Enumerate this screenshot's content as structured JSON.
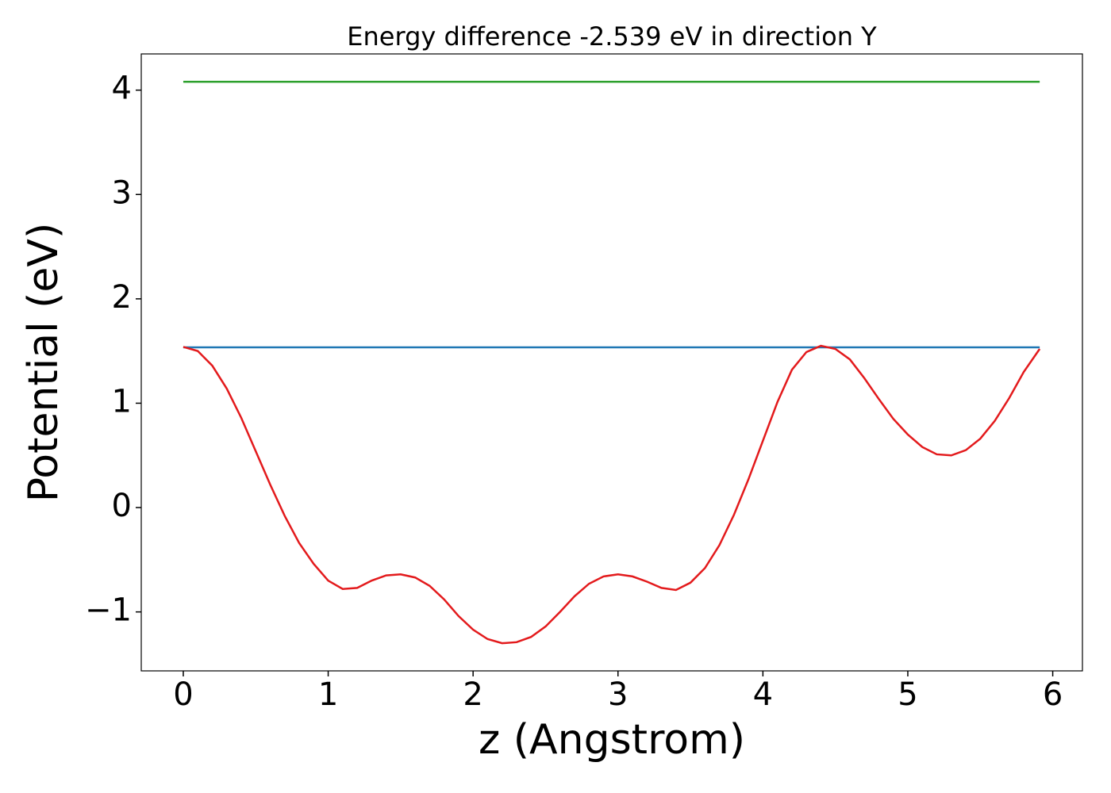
{
  "chart_data": {
    "type": "line",
    "title": "Energy difference -2.539 eV in direction Y",
    "xlabel": "z (Angstrom)",
    "ylabel": "Potential (eV)",
    "xlim": [
      -0.29,
      6.205
    ],
    "ylim": [
      -1.565,
      4.347
    ],
    "xticks": [
      0,
      1,
      2,
      3,
      4,
      5,
      6
    ],
    "yticks": [
      {
        "value": -1,
        "label": "−1"
      },
      0,
      1,
      2,
      3,
      4
    ],
    "series": [
      {
        "color": "#2ca02c",
        "x": [
          0,
          5.91
        ],
        "values": [
          4.08,
          4.08
        ]
      },
      {
        "color": "#1f77b4",
        "x": [
          0,
          5.91
        ],
        "values": [
          1.535,
          1.535
        ]
      },
      {
        "color": "#e31a1c",
        "x": [
          0,
          0.1,
          0.2,
          0.3,
          0.4,
          0.5,
          0.6,
          0.7,
          0.8,
          0.9,
          1.0,
          1.1,
          1.2,
          1.3,
          1.4,
          1.5,
          1.6,
          1.7,
          1.8,
          1.9,
          2.0,
          2.1,
          2.2,
          2.3,
          2.4,
          2.5,
          2.6,
          2.7,
          2.8,
          2.9,
          3.0,
          3.1,
          3.2,
          3.3,
          3.4,
          3.5,
          3.6,
          3.7,
          3.8,
          3.9,
          4.0,
          4.1,
          4.2,
          4.3,
          4.4,
          4.5,
          4.6,
          4.7,
          4.8,
          4.9,
          5.0,
          5.1,
          5.2,
          5.3,
          5.4,
          5.5,
          5.6,
          5.7,
          5.8,
          5.91
        ],
        "values": [
          1.54,
          1.5,
          1.36,
          1.14,
          0.86,
          0.54,
          0.22,
          -0.08,
          -0.34,
          -0.54,
          -0.7,
          -0.78,
          -0.77,
          -0.7,
          -0.65,
          -0.64,
          -0.67,
          -0.75,
          -0.88,
          -1.04,
          -1.17,
          -1.26,
          -1.3,
          -1.29,
          -1.24,
          -1.14,
          -1.0,
          -0.85,
          -0.73,
          -0.66,
          -0.64,
          -0.66,
          -0.71,
          -0.77,
          -0.79,
          -0.72,
          -0.58,
          -0.36,
          -0.07,
          0.27,
          0.64,
          1.01,
          1.32,
          1.49,
          1.55,
          1.52,
          1.42,
          1.24,
          1.04,
          0.85,
          0.7,
          0.58,
          0.51,
          0.5,
          0.55,
          0.66,
          0.83,
          1.05,
          1.3,
          1.52
        ]
      }
    ]
  }
}
